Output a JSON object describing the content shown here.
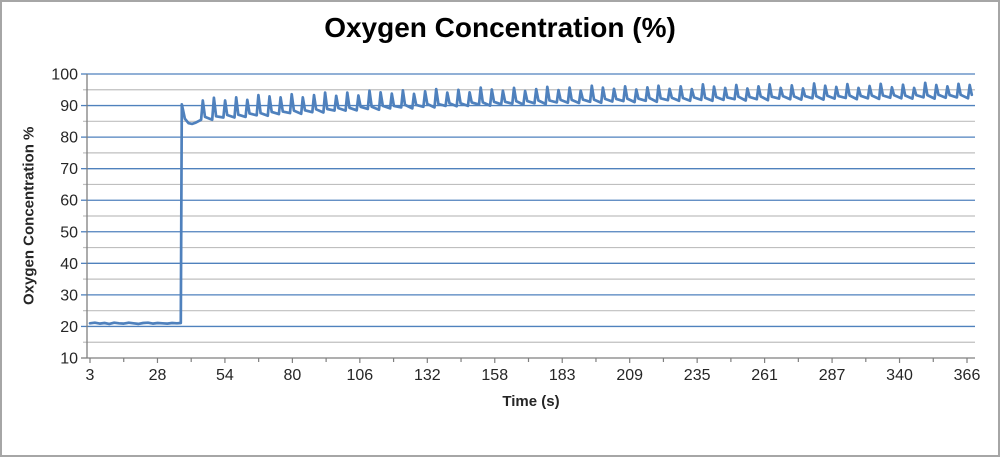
{
  "window": {
    "background": "#ffffff",
    "border_color": "#a6a6a6"
  },
  "chart_data": {
    "type": "line",
    "title": "Oxygen Concentration (%)",
    "xlabel": "Time (s)",
    "ylabel": "Oxygen Concentration %",
    "legend": "none",
    "x_tick_labels": [
      "3",
      "28",
      "54",
      "80",
      "106",
      "132",
      "158",
      "183",
      "209",
      "235",
      "261",
      "287",
      "340",
      "366"
    ],
    "y_ticks": [
      10,
      20,
      30,
      40,
      50,
      60,
      70,
      80,
      90,
      100
    ],
    "y_minor_ticks": [
      15,
      25,
      35,
      45,
      55,
      65,
      75,
      85,
      95
    ],
    "ylim": [
      10,
      100
    ],
    "xlim": [
      3,
      368
    ],
    "grid": {
      "major_horizontal": "on, blue, every 10 units",
      "minor_horizontal": "on, gray, every 5 units",
      "vertical": "off",
      "x_minor_ticks": "at midpoints between labeled ticks"
    },
    "colors": {
      "series": "#4f81bd",
      "major_grid": "#4f81bd",
      "minor_grid": "#bfbfbf",
      "axis": "#7f7f7f",
      "text": "#262626",
      "title_text": "#000000"
    },
    "pattern_summary": "Flat ~21% from t=3-40s; vertical step to ~90% at t=41s; brief dip to ~84%; then ~4.6s-period sawtooth spikes whose baseline rises from ~85% to ~93% and peaks from ~92% to ~97% by t=366s",
    "series": [
      {
        "name": "Oxygen Concentration %",
        "color": "#4f81bd",
        "points": [
          [
            3,
            21
          ],
          [
            5,
            21.2
          ],
          [
            7,
            20.9
          ],
          [
            9,
            21.1
          ],
          [
            11,
            20.8
          ],
          [
            13,
            21.2
          ],
          [
            15,
            21
          ],
          [
            17,
            20.9
          ],
          [
            19,
            21.2
          ],
          [
            21,
            21
          ],
          [
            23,
            20.8
          ],
          [
            25,
            21.1
          ],
          [
            27,
            21.2
          ],
          [
            29,
            20.9
          ],
          [
            31,
            21.1
          ],
          [
            33,
            21
          ],
          [
            35,
            20.9
          ],
          [
            37,
            21.1
          ],
          [
            39,
            21
          ],
          [
            40.6,
            21.1
          ],
          [
            41,
            90.4
          ],
          [
            42.3,
            85.8
          ],
          [
            43.8,
            84.4
          ],
          [
            45.3,
            84.2
          ],
          [
            46.8,
            84.6
          ],
          [
            49,
            85.5
          ],
          [
            49.7,
            91.6
          ],
          [
            50.6,
            86.4
          ],
          [
            53.6,
            85.5
          ],
          [
            54.3,
            92.5
          ],
          [
            55.2,
            86.6
          ],
          [
            58.2,
            86.2
          ],
          [
            58.9,
            91.6
          ],
          [
            59.8,
            87
          ],
          [
            62.8,
            86.2
          ],
          [
            63.5,
            92.6
          ],
          [
            64.4,
            87.1
          ],
          [
            67.4,
            86.4
          ],
          [
            68.1,
            91.8
          ],
          [
            69,
            87.5
          ],
          [
            72,
            86.9
          ],
          [
            72.7,
            93.3
          ],
          [
            73.6,
            87.6
          ],
          [
            76.6,
            86.8
          ],
          [
            77.3,
            92.9
          ],
          [
            78.2,
            88
          ],
          [
            81.2,
            87.3
          ],
          [
            81.9,
            92.6
          ],
          [
            82.8,
            88.1
          ],
          [
            85.8,
            87.6
          ],
          [
            86.5,
            93.6
          ],
          [
            87.4,
            88.4
          ],
          [
            90.4,
            87.4
          ],
          [
            91.1,
            92.6
          ],
          [
            92,
            88.5
          ],
          [
            95,
            87.9
          ],
          [
            95.7,
            93.3
          ],
          [
            96.6,
            88.8
          ],
          [
            99.6,
            87.8
          ],
          [
            100.3,
            94.1
          ],
          [
            101.2,
            88.9
          ],
          [
            104.2,
            88.4
          ],
          [
            104.9,
            93.1
          ],
          [
            105.8,
            89.2
          ],
          [
            108.8,
            88.4
          ],
          [
            109.5,
            94.1
          ],
          [
            110.4,
            89.3
          ],
          [
            113.4,
            88.5
          ],
          [
            114.1,
            93.2
          ],
          [
            115,
            89.6
          ],
          [
            118,
            88.9
          ],
          [
            118.7,
            94.7
          ],
          [
            119.6,
            89.6
          ],
          [
            122.6,
            88.7
          ],
          [
            123.3,
            94.2
          ],
          [
            124.2,
            89.9
          ],
          [
            127.2,
            89.1
          ],
          [
            127.9,
            93.8
          ],
          [
            128.8,
            89.9
          ],
          [
            131.8,
            89.4
          ],
          [
            132.5,
            94.8
          ],
          [
            133.4,
            90.2
          ],
          [
            136.4,
            89.1
          ],
          [
            137.1,
            93.7
          ],
          [
            138,
            90.2
          ],
          [
            141,
            89.6
          ],
          [
            141.7,
            94.5
          ],
          [
            142.6,
            90.5
          ],
          [
            145.6,
            89.4
          ],
          [
            146.3,
            95.2
          ],
          [
            147.2,
            90.5
          ],
          [
            150.2,
            89.9
          ],
          [
            150.9,
            94.1
          ],
          [
            151.8,
            90.7
          ],
          [
            154.8,
            89.8
          ],
          [
            155.5,
            95
          ],
          [
            156.4,
            90.7
          ],
          [
            159.4,
            89.9
          ],
          [
            160.1,
            94.2
          ],
          [
            161,
            91
          ],
          [
            164,
            90.3
          ],
          [
            164.7,
            95.7
          ],
          [
            165.6,
            91
          ],
          [
            168.6,
            90
          ],
          [
            169.3,
            95.1
          ],
          [
            170.2,
            91.2
          ],
          [
            173.2,
            90.4
          ],
          [
            173.9,
            94.7
          ],
          [
            174.8,
            91.2
          ],
          [
            177.8,
            90.6
          ],
          [
            178.5,
            95.6
          ],
          [
            179.4,
            91.4
          ],
          [
            182.4,
            90.3
          ],
          [
            183.1,
            94.6
          ],
          [
            184,
            91.4
          ],
          [
            187,
            90.7
          ],
          [
            187.7,
            95.2
          ],
          [
            188.6,
            91.6
          ],
          [
            191.6,
            90.5
          ],
          [
            192.3,
            95.9
          ],
          [
            193.2,
            91.6
          ],
          [
            196.2,
            91
          ],
          [
            196.9,
            94.9
          ],
          [
            197.8,
            91.8
          ],
          [
            200.8,
            90.9
          ],
          [
            201.5,
            95.7
          ],
          [
            202.4,
            91.8
          ],
          [
            205.4,
            90.8
          ],
          [
            206.1,
            94.7
          ],
          [
            207,
            91.9
          ],
          [
            210,
            91.2
          ],
          [
            210.7,
            96.3
          ],
          [
            211.6,
            91.9
          ],
          [
            214.6,
            90.9
          ],
          [
            215.3,
            95.7
          ],
          [
            216.2,
            92.1
          ],
          [
            219.2,
            91.3
          ],
          [
            219.9,
            95.3
          ],
          [
            220.8,
            92.1
          ],
          [
            223.8,
            91.4
          ],
          [
            224.5,
            96.1
          ],
          [
            225.4,
            92.2
          ],
          [
            228.4,
            91.1
          ],
          [
            229.1,
            95.1
          ],
          [
            230,
            92.2
          ],
          [
            233,
            91.5
          ],
          [
            233.7,
            95.8
          ],
          [
            234.6,
            92.4
          ],
          [
            237.6,
            91.2
          ],
          [
            238.3,
            96.3
          ],
          [
            239.2,
            92.3
          ],
          [
            242.2,
            91.7
          ],
          [
            242.9,
            95.3
          ],
          [
            243.8,
            92.5
          ],
          [
            246.8,
            91.5
          ],
          [
            247.5,
            96.1
          ],
          [
            248.4,
            92.4
          ],
          [
            251.4,
            91.5
          ],
          [
            252.1,
            95.2
          ],
          [
            253,
            92.6
          ],
          [
            256,
            91.8
          ],
          [
            256.7,
            96.7
          ],
          [
            257.6,
            92.5
          ],
          [
            260.6,
            91.5
          ],
          [
            261.3,
            96
          ],
          [
            262.2,
            92.7
          ],
          [
            265.2,
            91.8
          ],
          [
            265.9,
            95.6
          ],
          [
            266.8,
            92.6
          ],
          [
            269.8,
            92
          ],
          [
            270.5,
            96.5
          ],
          [
            271.4,
            92.8
          ],
          [
            274.4,
            91.6
          ],
          [
            275.1,
            95.4
          ],
          [
            276,
            92.7
          ],
          [
            279,
            92
          ],
          [
            279.7,
            96.1
          ],
          [
            280.6,
            92.9
          ],
          [
            283.6,
            91.7
          ],
          [
            284.3,
            96.7
          ],
          [
            285.2,
            92.8
          ],
          [
            288.2,
            92.2
          ],
          [
            288.9,
            95.6
          ],
          [
            289.8,
            93
          ],
          [
            292.8,
            92
          ],
          [
            293.5,
            96.4
          ],
          [
            294.4,
            92.9
          ],
          [
            297.4,
            91.9
          ],
          [
            298.1,
            95.4
          ],
          [
            299,
            93
          ],
          [
            302,
            92.3
          ],
          [
            302.7,
            97
          ],
          [
            303.6,
            93
          ],
          [
            306.6,
            91.9
          ],
          [
            307.3,
            96.3
          ],
          [
            308.2,
            93.1
          ],
          [
            311.2,
            92.2
          ],
          [
            311.9,
            95.9
          ],
          [
            312.8,
            93
          ],
          [
            315.8,
            92.4
          ],
          [
            316.5,
            96.8
          ],
          [
            317.4,
            93.2
          ],
          [
            320.4,
            92
          ],
          [
            321.1,
            95.6
          ],
          [
            322,
            93.1
          ],
          [
            325,
            92.3
          ],
          [
            325.7,
            96.2
          ],
          [
            326.6,
            93.2
          ],
          [
            329.6,
            92.1
          ],
          [
            330.3,
            96.9
          ],
          [
            331.2,
            93.2
          ],
          [
            334.2,
            92.5
          ],
          [
            334.9,
            95.8
          ],
          [
            335.8,
            93.3
          ],
          [
            338.8,
            92.3
          ],
          [
            339.5,
            96.6
          ],
          [
            340.4,
            93.2
          ],
          [
            343.4,
            92.2
          ],
          [
            344.1,
            95.6
          ],
          [
            345,
            93.3
          ],
          [
            348,
            92.6
          ],
          [
            348.7,
            97.2
          ],
          [
            349.6,
            93.3
          ],
          [
            352.6,
            92.2
          ],
          [
            353.3,
            96.5
          ],
          [
            354.2,
            93.4
          ],
          [
            357.2,
            92.5
          ],
          [
            357.9,
            96.1
          ],
          [
            358.8,
            93.3
          ],
          [
            361.8,
            92.6
          ],
          [
            362.5,
            96.9
          ],
          [
            363.4,
            93.4
          ],
          [
            366.4,
            92.3
          ],
          [
            367.1,
            96.5
          ],
          [
            368,
            93.4
          ]
        ]
      }
    ]
  }
}
